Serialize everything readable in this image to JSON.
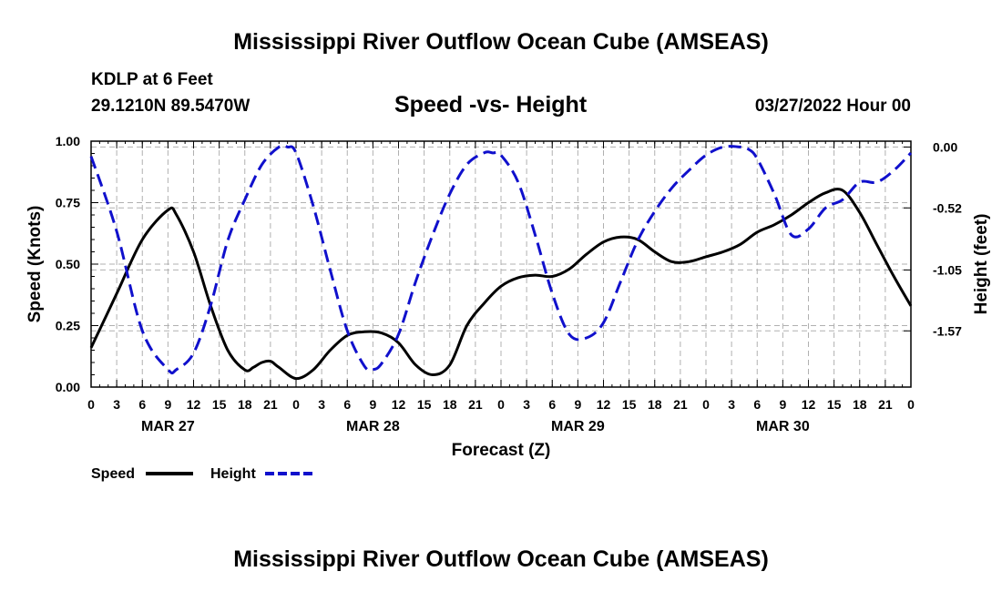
{
  "header": {
    "title": "Mississippi River Outflow Ocean Cube (AMSEAS)",
    "station": "KDLP at 6 Feet",
    "location": "29.1210N  89.5470W",
    "datetime": "03/27/2022 Hour 00",
    "footer_title": "Mississippi River Outflow Ocean Cube (AMSEAS)"
  },
  "chart_data": {
    "type": "line",
    "title": "Speed -vs- Height",
    "xlabel": "Forecast (Z)",
    "ylabel_left": "Speed (Knots)",
    "ylabel_right": "Height (feet)",
    "x_range_hours": [
      0,
      96
    ],
    "x_ticks": [
      "0",
      "3",
      "6",
      "9",
      "12",
      "15",
      "18",
      "21",
      "0",
      "3",
      "6",
      "9",
      "12",
      "15",
      "18",
      "21",
      "0",
      "3",
      "6",
      "9",
      "12",
      "15",
      "18",
      "21",
      "0",
      "3",
      "6",
      "9",
      "12",
      "15",
      "18",
      "21",
      "0"
    ],
    "date_labels": [
      {
        "label": "MAR 27",
        "hour": 9
      },
      {
        "label": "MAR 28",
        "hour": 33
      },
      {
        "label": "MAR 29",
        "hour": 57
      },
      {
        "label": "MAR 30",
        "hour": 81
      }
    ],
    "ylim_left": [
      0,
      1.0
    ],
    "yticks_left": [
      "0.00",
      "0.25",
      "0.50",
      "0.75",
      "1.00"
    ],
    "ylim_right": [
      -2.05,
      0.05
    ],
    "yticks_right": [
      {
        "label": "0.00",
        "value": 0.0
      },
      {
        "label": "-0.52",
        "value": -0.52
      },
      {
        "label": "-1.05",
        "value": -1.05
      },
      {
        "label": "-1.57",
        "value": -1.57
      }
    ],
    "grid": true,
    "legend": [
      {
        "name": "Speed",
        "color": "#000000",
        "dash": "solid"
      },
      {
        "name": "Height",
        "color": "#1010cc",
        "dash": "dashed"
      }
    ],
    "series": [
      {
        "name": "Speed",
        "axis": "left",
        "color": "#000000",
        "x": [
          0,
          3,
          6,
          9,
          10,
          12,
          14,
          16,
          18,
          19,
          20,
          21,
          22,
          24,
          26,
          28,
          30,
          32,
          34,
          36,
          38,
          40,
          42,
          44,
          46,
          48,
          50,
          52,
          54,
          56,
          58,
          60,
          62,
          64,
          66,
          68,
          70,
          72,
          74,
          76,
          78,
          80,
          82,
          84,
          86,
          88,
          90,
          92,
          94,
          96
        ],
        "values": [
          0.16,
          0.38,
          0.6,
          0.72,
          0.7,
          0.55,
          0.33,
          0.15,
          0.07,
          0.08,
          0.1,
          0.105,
          0.08,
          0.035,
          0.07,
          0.15,
          0.21,
          0.225,
          0.22,
          0.18,
          0.09,
          0.05,
          0.09,
          0.25,
          0.34,
          0.41,
          0.445,
          0.455,
          0.45,
          0.48,
          0.54,
          0.59,
          0.61,
          0.6,
          0.55,
          0.51,
          0.51,
          0.53,
          0.55,
          0.58,
          0.63,
          0.66,
          0.7,
          0.75,
          0.79,
          0.8,
          0.71,
          0.58,
          0.45,
          0.33
        ]
      },
      {
        "name": "Height",
        "axis": "right",
        "color": "#1010cc",
        "x": [
          0,
          3,
          6,
          9,
          10,
          12,
          14,
          16,
          18,
          20,
          22,
          23,
          24,
          26,
          28,
          30,
          32,
          33,
          34,
          36,
          38,
          40,
          42,
          44,
          46,
          47,
          48,
          50,
          52,
          54,
          56,
          58,
          60,
          62,
          64,
          66,
          68,
          70,
          72,
          74,
          76,
          77,
          78,
          80,
          82,
          84,
          86,
          88,
          90,
          92,
          94,
          96
        ],
        "values": [
          -0.08,
          -0.72,
          -1.57,
          -1.9,
          -1.9,
          -1.76,
          -1.35,
          -0.8,
          -0.45,
          -0.15,
          0.0,
          0.0,
          -0.05,
          -0.5,
          -1.05,
          -1.57,
          -1.87,
          -1.9,
          -1.85,
          -1.6,
          -1.15,
          -0.75,
          -0.4,
          -0.15,
          -0.05,
          -0.05,
          -0.07,
          -0.3,
          -0.75,
          -1.25,
          -1.6,
          -1.63,
          -1.5,
          -1.15,
          -0.8,
          -0.55,
          -0.35,
          -0.2,
          -0.07,
          0.0,
          0.0,
          -0.02,
          -0.1,
          -0.4,
          -0.75,
          -0.7,
          -0.52,
          -0.45,
          -0.3,
          -0.3,
          -0.2,
          -0.05
        ]
      }
    ]
  }
}
